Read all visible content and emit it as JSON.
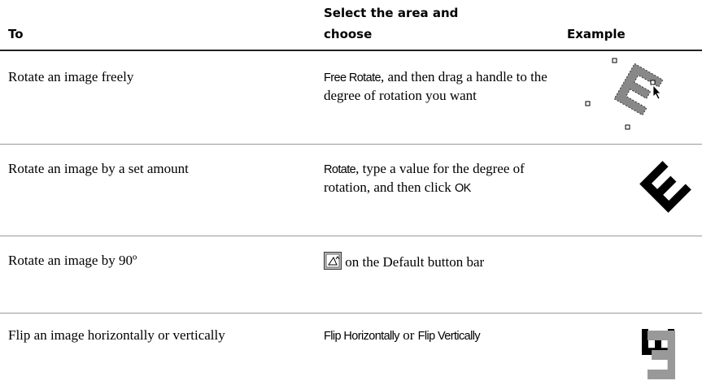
{
  "header": {
    "columns": [
      "To",
      "Select the area and choose",
      "Example"
    ]
  },
  "table": {
    "rows": [
      {
        "task": "Rotate an image freely",
        "action": [
          "Free Rotate",
          ", and then drag a handle to the degree of rotation you want"
        ]
      },
      {
        "task": "Rotate an image by a set amount",
        "action": [
          "Rotate",
          ", type a value for the degree of rotation, and then click ",
          "OK"
        ]
      },
      {
        "task": "Rotate an image by 90º",
        "action": [
          " on the Default button bar"
        ]
      },
      {
        "task": "Flip an image horizontally or vertically",
        "action": [
          "Flip Horizontally",
          " or ",
          "Flip Vertically"
        ]
      }
    ]
  }
}
